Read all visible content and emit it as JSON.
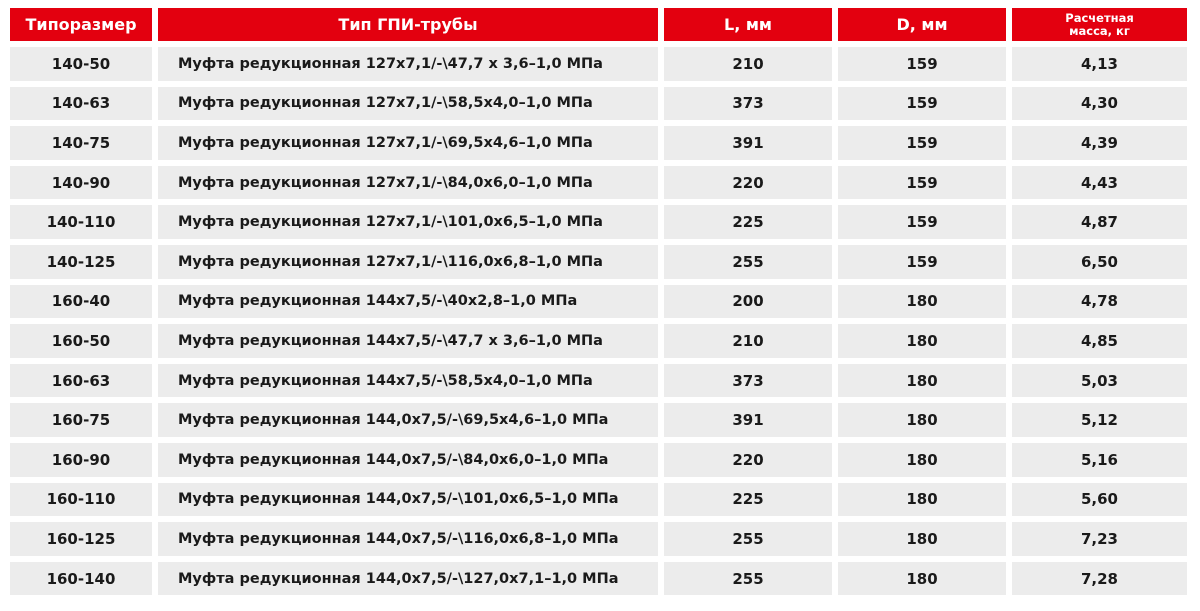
{
  "header": [
    "Типоразмер",
    "Тип ГПИ-трубы",
    "L, мм",
    "D, мм",
    "Расчетная масса, кг"
  ],
  "rows": [
    [
      "140-50",
      "Муфта редукционная 127x7,1/-\\47,7 x 3,6–1,0 МПа",
      "210",
      "159",
      "4,13"
    ],
    [
      "140-63",
      "Муфта редукционная 127x7,1/-\\58,5x4,0–1,0 МПа",
      "373",
      "159",
      "4,30"
    ],
    [
      "140-75",
      "Муфта редукционная 127x7,1/-\\69,5x4,6–1,0 МПа",
      "391",
      "159",
      "4,39"
    ],
    [
      "140-90",
      "Муфта редукционная 127x7,1/-\\84,0x6,0–1,0 МПа",
      "220",
      "159",
      "4,43"
    ],
    [
      "140-110",
      "Муфта редукционная 127x7,1/-\\101,0x6,5–1,0 МПа",
      "225",
      "159",
      "4,87"
    ],
    [
      "140-125",
      "Муфта редукционная 127x7,1/-\\116,0x6,8–1,0 МПа",
      "255",
      "159",
      "6,50"
    ],
    [
      "160-40",
      "Муфта редукционная 144x7,5/-\\40x2,8–1,0 МПа",
      "200",
      "180",
      "4,78"
    ],
    [
      "160-50",
      "Муфта редукционная 144x7,5/-\\47,7 x 3,6–1,0 МПа",
      "210",
      "180",
      "4,85"
    ],
    [
      "160-63",
      "Муфта редукционная 144x7,5/-\\58,5x4,0–1,0 МПа",
      "373",
      "180",
      "5,03"
    ],
    [
      "160-75",
      "Муфта редукционная 144,0x7,5/-\\69,5x4,6–1,0 МПа",
      "391",
      "180",
      "5,12"
    ],
    [
      "160-90",
      "Муфта редукционная 144,0x7,5/-\\84,0x6,0–1,0 МПа",
      "220",
      "180",
      "5,16"
    ],
    [
      "160-110",
      "Муфта редукционная 144,0x7,5/-\\101,0x6,5–1,0 МПа",
      "225",
      "180",
      "5,60"
    ],
    [
      "160-125",
      "Муфта редукционная 144,0x7,5/-\\116,0x6,8–1,0 МПа",
      "255",
      "180",
      "7,23"
    ],
    [
      "160-140",
      "Муфта редукционная 144,0x7,5/-\\127,0x7,1–1,0 МПа",
      "255",
      "180",
      "7,28"
    ]
  ],
  "colors": {
    "header_bg": "#e3000f",
    "row_bg": "#ececec"
  }
}
